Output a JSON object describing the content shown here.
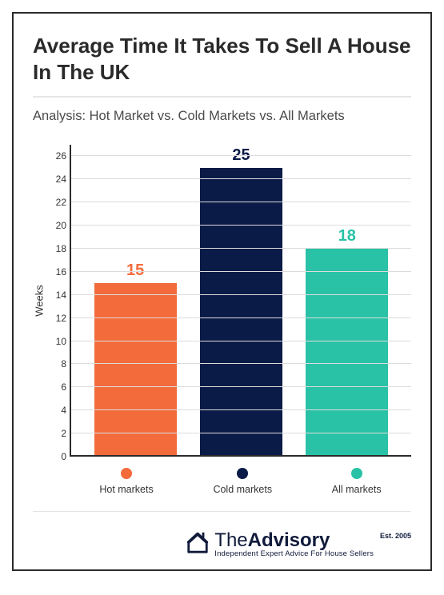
{
  "title": "Average Time It Takes To Sell A House In The UK",
  "subtitle": "Analysis: Hot Market vs. Cold Markets vs. All Markets",
  "chart": {
    "type": "bar",
    "ylabel": "Weeks",
    "ylim": [
      0,
      27
    ],
    "ytick_step": 2,
    "ytick_start": 0,
    "ytick_end": 26,
    "grid_color": "#dcdcdc",
    "axis_color": "#2b2b2b",
    "background_color": "#ffffff",
    "label_fontsize": 12,
    "value_fontsize": 20,
    "bar_width": 0.78,
    "categories": [
      "Hot markets",
      "Cold markets",
      "All markets"
    ],
    "values": [
      15,
      25,
      18
    ],
    "bar_colors": [
      "#f36b3b",
      "#0b1b47",
      "#29c2a6"
    ],
    "value_colors": [
      "#f36b3b",
      "#0b1b47",
      "#29c2a6"
    ]
  },
  "brand": {
    "name_light": "The",
    "name_bold": "Advisory",
    "est": "Est. 2005",
    "tagline": "Independent Expert Advice For House Sellers",
    "color": "#101a3a"
  }
}
